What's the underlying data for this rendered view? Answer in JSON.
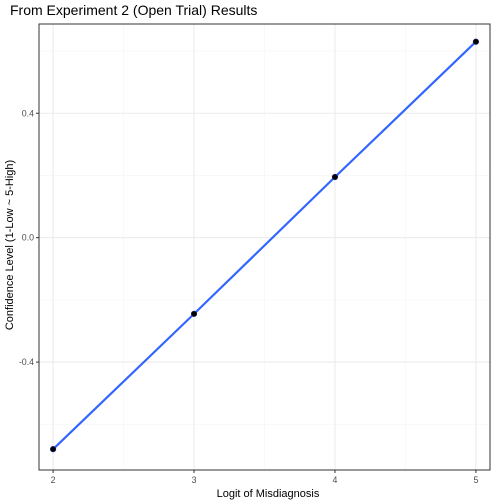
{
  "chart_data": {
    "type": "line",
    "title": "From Experiment 2 (Open Trial) Results",
    "xlabel": "Logit of Misdiagnosis",
    "ylabel": "Confidence Level (1-Low ~ 5-High)",
    "x_ticks": [
      2,
      3,
      4,
      5
    ],
    "y_ticks": [
      -0.4,
      0.0,
      0.4
    ],
    "y_tick_labels": [
      "-0.4",
      "0.0",
      "0.4"
    ],
    "x_tick_labels": [
      "2",
      "3",
      "4",
      "5"
    ],
    "xlim": [
      1.9,
      5.1
    ],
    "ylim": [
      -0.747,
      0.687
    ],
    "grid": true,
    "legend": "none",
    "series": [
      {
        "x": [
          2,
          3,
          4,
          5
        ],
        "y": [
          -0.68,
          -0.245,
          0.195,
          0.63
        ],
        "line_color": "#3366FF",
        "point_color": "#000000"
      }
    ]
  },
  "colors": {
    "panel_border": "#333333",
    "grid_major": "#ebebeb",
    "grid_minor": "#f5f5f5"
  }
}
